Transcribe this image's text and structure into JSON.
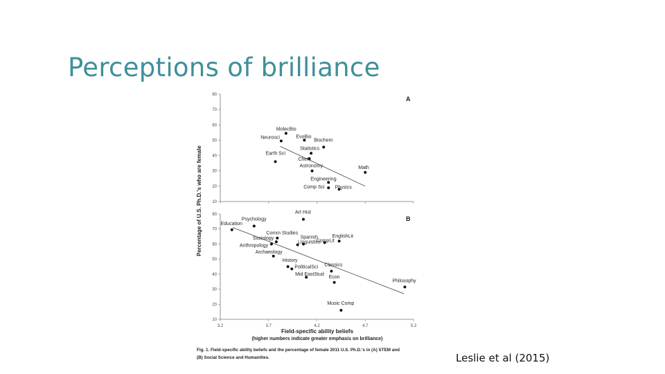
{
  "slide": {
    "title": "Perceptions of brilliance",
    "citation": "Leslie et al (2015)"
  },
  "figure": {
    "y_axis_title": "Percentage of U.S. Ph.D.'s who are female",
    "x_axis_title": "Field-specific ability beliefs",
    "x_axis_subtitle": "(higher numbers indicate greater emphasis on brilliance)",
    "caption_line1": "Fig. 1. Field-specific ability beliefs and the percentage of female 2011 U.S. Ph.D.'s in (A) STEM and",
    "caption_line2": "(B) Social Science and Humanities."
  },
  "chart_data": [
    {
      "type": "scatter",
      "panel": "A",
      "xlim": [
        3.2,
        5.2
      ],
      "ylim": [
        10,
        80
      ],
      "x_ticks": [
        "3.2",
        "3.7",
        "4.2",
        "4.7",
        "5.2"
      ],
      "y_ticks": [
        "10",
        "20",
        "30",
        "40",
        "50",
        "60",
        "70",
        "80"
      ],
      "grid": false,
      "points": [
        {
          "label": "MolecBio",
          "x": 3.88,
          "y": 54.5
        },
        {
          "label": "EvoBio",
          "x": 4.07,
          "y": 50.0
        },
        {
          "label": "Neurosci",
          "x": 3.83,
          "y": 49.5
        },
        {
          "label": "Biochem",
          "x": 4.27,
          "y": 45.5
        },
        {
          "label": "Statistics",
          "x": 4.14,
          "y": 41.5
        },
        {
          "label": "Chem",
          "x": 4.12,
          "y": 38.0
        },
        {
          "label": "Earth Sci",
          "x": 3.77,
          "y": 36.0
        },
        {
          "label": "Astronomy",
          "x": 4.15,
          "y": 30.0
        },
        {
          "label": "Math",
          "x": 4.7,
          "y": 29.0
        },
        {
          "label": "Engineering",
          "x": 4.32,
          "y": 22.5
        },
        {
          "label": "Comp Sci",
          "x": 4.32,
          "y": 19.0
        },
        {
          "label": "Physics",
          "x": 4.43,
          "y": 18.0
        }
      ],
      "trend": {
        "x": [
          3.82,
          4.7
        ],
        "y": [
          46.0,
          20.0
        ]
      }
    },
    {
      "type": "scatter",
      "panel": "B",
      "xlim": [
        3.2,
        5.2
      ],
      "ylim": [
        10,
        80
      ],
      "x_ticks": [
        "3.2",
        "3.7",
        "4.2",
        "4.7",
        "5.2"
      ],
      "y_ticks": [
        "10",
        "20",
        "30",
        "40",
        "50",
        "60",
        "70",
        "80"
      ],
      "grid": false,
      "points": [
        {
          "label": "Art Hist",
          "x": 4.06,
          "y": 76.5
        },
        {
          "label": "Education",
          "x": 3.32,
          "y": 69.5
        },
        {
          "label": "Psychology",
          "x": 3.55,
          "y": 72.0
        },
        {
          "label": "Comm Studies",
          "x": 3.79,
          "y": 64.0
        },
        {
          "label": "Sociology",
          "x": 3.78,
          "y": 61.5
        },
        {
          "label": "Anthropology",
          "x": 3.73,
          "y": 60.0
        },
        {
          "label": "Spanish",
          "x": 4.0,
          "y": 59.5
        },
        {
          "label": "Linguistics",
          "x": 4.06,
          "y": 60.0
        },
        {
          "label": "CompLit",
          "x": 4.28,
          "y": 61.0
        },
        {
          "label": "EnglishLit",
          "x": 4.43,
          "y": 62.0
        },
        {
          "label": "Archaeology",
          "x": 3.75,
          "y": 52.0
        },
        {
          "label": "History",
          "x": 3.9,
          "y": 45.0
        },
        {
          "label": "PoliticalSci",
          "x": 3.94,
          "y": 43.5
        },
        {
          "label": "Classics",
          "x": 4.35,
          "y": 42.0
        },
        {
          "label": "Mid EastStud",
          "x": 4.09,
          "y": 38.0
        },
        {
          "label": "Econ",
          "x": 4.38,
          "y": 34.5
        },
        {
          "label": "Philosophy",
          "x": 5.11,
          "y": 31.5
        },
        {
          "label": "Music Comp",
          "x": 4.45,
          "y": 16.0
        }
      ],
      "trend": {
        "x": [
          3.33,
          5.1
        ],
        "y": [
          71.0,
          27.0
        ]
      }
    }
  ]
}
